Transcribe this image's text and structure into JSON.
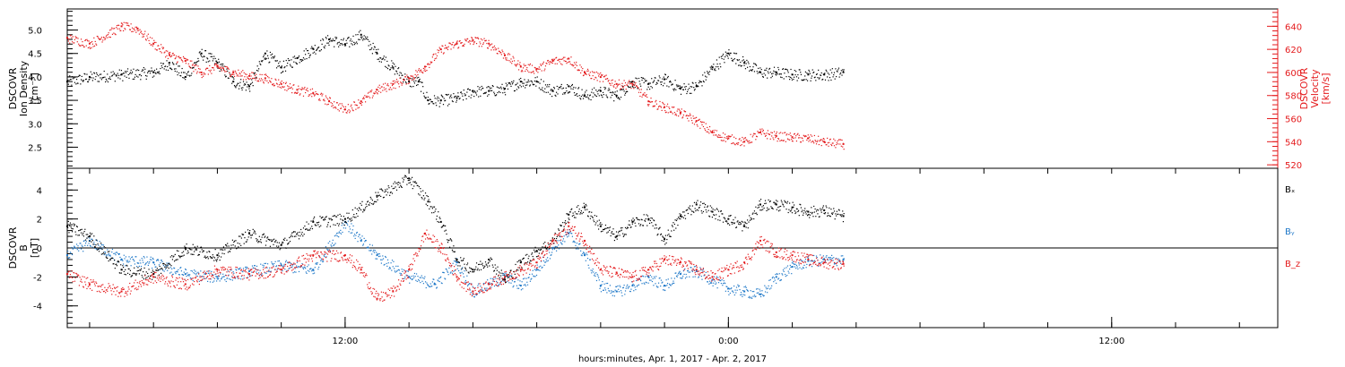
{
  "xlabel": "hours:minutes, Apr.  1, 2017 - Apr.  2, 2017",
  "x_ticks": [
    {
      "hour": 12,
      "label": "12:00"
    },
    {
      "hour": 24,
      "label": "0:00"
    },
    {
      "hour": 36,
      "label": "12:00"
    }
  ],
  "colors": {
    "black": "#000000",
    "red": "#e41a1c",
    "blue": "#1f78c8"
  },
  "chart_data": [
    {
      "type": "scatter",
      "panel": "density-velocity",
      "x_units": "hours since Apr 1 2017 00:00",
      "xlim": [
        3.3,
        41.2
      ],
      "ylabel_lines": [
        "DSCOVR",
        "Ion Density",
        "[cm⁻³]"
      ],
      "ylim": [
        2.05,
        5.45
      ],
      "yticks": [
        "2.5",
        "3.0",
        "3.5",
        "4.0",
        "4.5",
        "5.0"
      ],
      "y2label_lines": [
        "DSCOVR",
        "Velocity",
        "[km/s]"
      ],
      "y2lim": [
        517,
        655
      ],
      "y2ticks": [
        "520",
        "540",
        "560",
        "580",
        "600",
        "620",
        "640"
      ],
      "series": [
        {
          "axis": "left",
          "color": "#000000",
          "points": [
            [
              3.3,
              3.9
            ],
            [
              4.0,
              4.0
            ],
            [
              5.0,
              4.05
            ],
            [
              6.0,
              4.1
            ],
            [
              6.5,
              4.3
            ],
            [
              7.0,
              4.0
            ],
            [
              7.5,
              4.5
            ],
            [
              8.0,
              4.3
            ],
            [
              8.5,
              3.9
            ],
            [
              9.0,
              3.8
            ],
            [
              9.5,
              4.5
            ],
            [
              10.0,
              4.2
            ],
            [
              10.5,
              4.4
            ],
            [
              11.0,
              4.6
            ],
            [
              11.5,
              4.8
            ],
            [
              12.0,
              4.7
            ],
            [
              12.5,
              4.9
            ],
            [
              13.0,
              4.5
            ],
            [
              13.5,
              4.2
            ],
            [
              14.0,
              3.9
            ],
            [
              14.3,
              3.9
            ],
            [
              14.6,
              3.5
            ],
            [
              15.0,
              3.5
            ],
            [
              15.5,
              3.55
            ],
            [
              16.0,
              3.7
            ],
            [
              16.5,
              3.7
            ],
            [
              17.0,
              3.75
            ],
            [
              17.5,
              3.9
            ],
            [
              18.0,
              3.9
            ],
            [
              18.5,
              3.7
            ],
            [
              19.0,
              3.8
            ],
            [
              19.5,
              3.6
            ],
            [
              20.0,
              3.7
            ],
            [
              20.5,
              3.6
            ],
            [
              21.0,
              3.9
            ],
            [
              21.5,
              3.85
            ],
            [
              22.0,
              3.95
            ],
            [
              22.5,
              3.75
            ],
            [
              23.0,
              3.8
            ],
            [
              23.5,
              4.2
            ],
            [
              24.0,
              4.5
            ],
            [
              24.5,
              4.3
            ],
            [
              25.0,
              4.1
            ],
            [
              25.5,
              4.1
            ],
            [
              26.0,
              4.05
            ],
            [
              26.5,
              4.05
            ],
            [
              27.0,
              4.05
            ],
            [
              27.6,
              4.1
            ]
          ]
        },
        {
          "axis": "right",
          "color": "#e41a1c",
          "points": [
            [
              3.3,
              630
            ],
            [
              4.0,
              625
            ],
            [
              5.0,
              640
            ],
            [
              5.5,
              638
            ],
            [
              6.0,
              625
            ],
            [
              6.5,
              615
            ],
            [
              7.0,
              610
            ],
            [
              7.5,
              600
            ],
            [
              8.0,
              605
            ],
            [
              8.5,
              600
            ],
            [
              9.0,
              597
            ],
            [
              9.5,
              595
            ],
            [
              10.0,
              590
            ],
            [
              10.5,
              585
            ],
            [
              11.0,
              582
            ],
            [
              11.5,
              575
            ],
            [
              12.0,
              568
            ],
            [
              12.5,
              575
            ],
            [
              13.0,
              585
            ],
            [
              13.5,
              590
            ],
            [
              14.0,
              595
            ],
            [
              14.5,
              605
            ],
            [
              15.0,
              620
            ],
            [
              15.5,
              625
            ],
            [
              16.0,
              628
            ],
            [
              16.5,
              625
            ],
            [
              17.0,
              615
            ],
            [
              17.5,
              605
            ],
            [
              18.0,
              603
            ],
            [
              18.5,
              610
            ],
            [
              19.0,
              612
            ],
            [
              19.5,
              600
            ],
            [
              20.0,
              596
            ],
            [
              20.5,
              590
            ],
            [
              21.0,
              590
            ],
            [
              21.5,
              575
            ],
            [
              22.0,
              570
            ],
            [
              22.5,
              565
            ],
            [
              23.0,
              558
            ],
            [
              23.5,
              548
            ],
            [
              24.0,
              543
            ],
            [
              24.5,
              540
            ],
            [
              25.0,
              548
            ],
            [
              25.5,
              545
            ],
            [
              26.0,
              544
            ],
            [
              26.5,
              543
            ],
            [
              27.0,
              540
            ],
            [
              27.6,
              538
            ]
          ]
        }
      ]
    },
    {
      "type": "scatter",
      "panel": "magnetic-field",
      "x_units": "hours since Apr 1 2017 00:00",
      "xlim": [
        3.3,
        41.2
      ],
      "ylabel_lines": [
        "DSCOVR",
        "B",
        "[nT]"
      ],
      "ylim": [
        -5.5,
        5.5
      ],
      "yticks": [
        "-4",
        "-2",
        "0",
        "2",
        "4"
      ],
      "zero_line": 0,
      "series": [
        {
          "name": "Bₓ",
          "color": "#000000",
          "points": [
            [
              3.3,
              1.5
            ],
            [
              4.0,
              0.8
            ],
            [
              5.0,
              -1.5
            ],
            [
              6.0,
              -1.8
            ],
            [
              7.0,
              0.0
            ],
            [
              8.0,
              -0.5
            ],
            [
              9.0,
              1.0
            ],
            [
              10.0,
              0.2
            ],
            [
              11.0,
              1.8
            ],
            [
              12.0,
              2.0
            ],
            [
              13.0,
              3.6
            ],
            [
              14.0,
              4.8
            ],
            [
              14.6,
              3.2
            ],
            [
              15.0,
              1.8
            ],
            [
              15.5,
              -0.8
            ],
            [
              16.0,
              -1.5
            ],
            [
              16.5,
              -0.8
            ],
            [
              17.0,
              -2.2
            ],
            [
              17.5,
              -1.0
            ],
            [
              18.0,
              -0.2
            ],
            [
              18.5,
              0.5
            ],
            [
              19.0,
              2.3
            ],
            [
              19.5,
              2.8
            ],
            [
              20.0,
              1.5
            ],
            [
              20.5,
              0.8
            ],
            [
              21.0,
              1.8
            ],
            [
              21.5,
              2.0
            ],
            [
              22.0,
              0.6
            ],
            [
              22.5,
              2.2
            ],
            [
              23.0,
              3.0
            ],
            [
              23.5,
              2.5
            ],
            [
              24.0,
              2.0
            ],
            [
              24.5,
              1.5
            ],
            [
              25.0,
              3.0
            ],
            [
              25.5,
              3.0
            ],
            [
              26.0,
              2.8
            ],
            [
              26.5,
              2.5
            ],
            [
              27.0,
              2.6
            ],
            [
              27.6,
              2.2
            ]
          ]
        },
        {
          "name": "Bᵧ",
          "color": "#1f78c8",
          "points": [
            [
              3.3,
              -0.5
            ],
            [
              4.0,
              0.5
            ],
            [
              5.0,
              -0.8
            ],
            [
              6.0,
              -1.0
            ],
            [
              7.0,
              -1.8
            ],
            [
              8.0,
              -2.0
            ],
            [
              9.0,
              -1.6
            ],
            [
              10.0,
              -1.2
            ],
            [
              11.0,
              -1.5
            ],
            [
              12.0,
              1.8
            ],
            [
              12.5,
              0.5
            ],
            [
              13.0,
              -0.5
            ],
            [
              14.0,
              -2.0
            ],
            [
              14.8,
              -2.5
            ],
            [
              15.5,
              -1.0
            ],
            [
              16.0,
              -3.0
            ],
            [
              16.5,
              -2.5
            ],
            [
              17.0,
              -2.0
            ],
            [
              17.5,
              -2.6
            ],
            [
              18.0,
              -1.5
            ],
            [
              18.5,
              0.0
            ],
            [
              19.0,
              1.0
            ],
            [
              19.5,
              -0.5
            ],
            [
              20.0,
              -2.6
            ],
            [
              20.5,
              -3.0
            ],
            [
              21.0,
              -2.6
            ],
            [
              21.5,
              -2.0
            ],
            [
              22.0,
              -2.6
            ],
            [
              22.5,
              -1.8
            ],
            [
              23.0,
              -1.6
            ],
            [
              23.5,
              -2.2
            ],
            [
              24.0,
              -2.8
            ],
            [
              24.5,
              -3.0
            ],
            [
              25.0,
              -3.2
            ],
            [
              25.5,
              -2.0
            ],
            [
              26.0,
              -1.3
            ],
            [
              26.5,
              -0.9
            ],
            [
              27.0,
              -0.8
            ],
            [
              27.6,
              -0.8
            ]
          ]
        },
        {
          "name": "B_z",
          "color": "#e41a1c",
          "points": [
            [
              3.3,
              -1.8
            ],
            [
              4.0,
              -2.5
            ],
            [
              5.0,
              -3.0
            ],
            [
              6.0,
              -2.0
            ],
            [
              7.0,
              -2.5
            ],
            [
              8.0,
              -1.5
            ],
            [
              9.0,
              -1.8
            ],
            [
              10.0,
              -1.5
            ],
            [
              11.0,
              -0.5
            ],
            [
              12.0,
              -0.5
            ],
            [
              12.5,
              -1.5
            ],
            [
              13.0,
              -3.5
            ],
            [
              13.5,
              -3.0
            ],
            [
              14.0,
              -1.5
            ],
            [
              14.5,
              1.0
            ],
            [
              15.0,
              0.0
            ],
            [
              15.5,
              -2.0
            ],
            [
              16.0,
              -3.0
            ],
            [
              16.5,
              -2.5
            ],
            [
              17.0,
              -2.0
            ],
            [
              17.5,
              -1.5
            ],
            [
              18.0,
              -1.0
            ],
            [
              18.5,
              0.5
            ],
            [
              19.0,
              1.5
            ],
            [
              19.5,
              0.5
            ],
            [
              20.0,
              -1.5
            ],
            [
              20.5,
              -1.7
            ],
            [
              21.0,
              -2.0
            ],
            [
              21.5,
              -1.5
            ],
            [
              22.0,
              -0.8
            ],
            [
              22.5,
              -1.0
            ],
            [
              23.0,
              -1.5
            ],
            [
              23.5,
              -2.0
            ],
            [
              24.0,
              -1.5
            ],
            [
              24.5,
              -1.0
            ],
            [
              25.0,
              0.5
            ],
            [
              25.5,
              -0.3
            ],
            [
              26.0,
              -0.5
            ],
            [
              26.5,
              -0.8
            ],
            [
              27.0,
              -1.0
            ],
            [
              27.6,
              -1.1
            ]
          ]
        }
      ]
    }
  ]
}
